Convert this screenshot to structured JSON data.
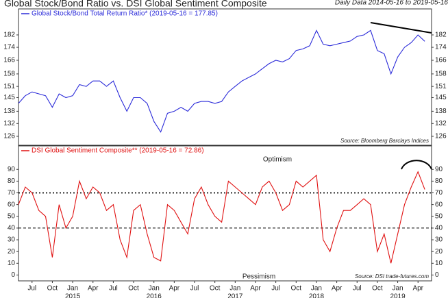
{
  "chart_data": [
    {
      "type": "line",
      "title": "Global Stock/Bond Ratio vs. DSI Global Sentiment Composite",
      "subtitle": "Daily Data 2014-05-16 to 2019-05-16",
      "source": "Source:  Bloomberg Barclays Indices",
      "log": true,
      "xlim": [
        "2014-05",
        "2019-06"
      ],
      "x": [
        "2014-05",
        "2014-06",
        "2014-07",
        "2014-08",
        "2014-09",
        "2014-10",
        "2014-11",
        "2014-12",
        "2015-01",
        "2015-02",
        "2015-03",
        "2015-04",
        "2015-05",
        "2015-06",
        "2015-07",
        "2015-08",
        "2015-09",
        "2015-10",
        "2015-11",
        "2015-12",
        "2016-01",
        "2016-02",
        "2016-03",
        "2016-04",
        "2016-05",
        "2016-06",
        "2016-07",
        "2016-08",
        "2016-09",
        "2016-10",
        "2016-11",
        "2016-12",
        "2017-01",
        "2017-02",
        "2017-03",
        "2017-04",
        "2017-05",
        "2017-06",
        "2017-07",
        "2017-08",
        "2017-09",
        "2017-10",
        "2017-11",
        "2017-12",
        "2018-01",
        "2018-02",
        "2018-03",
        "2018-04",
        "2018-05",
        "2018-06",
        "2018-07",
        "2018-08",
        "2018-09",
        "2018-10",
        "2018-11",
        "2018-12",
        "2019-01",
        "2019-02",
        "2019-03",
        "2019-04",
        "2019-05"
      ],
      "series": [
        {
          "name": "Global Stock/Bond Total Return Ratio* (2019-05-16 = 177.85)",
          "color": "#2b2bd9",
          "values": [
            142,
            146,
            148,
            147,
            146,
            140,
            147,
            145,
            146,
            152,
            151,
            154,
            154,
            151,
            154,
            145,
            138,
            145,
            145,
            142,
            133,
            128,
            137,
            138,
            140,
            138,
            142,
            143,
            143,
            142,
            143,
            148,
            151,
            154,
            156,
            158,
            161,
            164,
            166,
            165,
            167,
            172,
            173,
            175,
            185,
            176,
            175,
            176,
            177,
            178,
            181,
            182,
            185,
            172,
            170,
            158,
            168,
            174,
            177,
            182,
            177.85
          ]
        }
      ],
      "ylim": [
        122,
        200
      ],
      "yticks": [
        126,
        132,
        138,
        145,
        151,
        158,
        166,
        174,
        182
      ]
    },
    {
      "type": "line",
      "source": "Source:  DSI trade-futures.com",
      "top_note": "Optimism",
      "bottom_note": "Pessimism",
      "xlim": [
        "2014-05",
        "2019-06"
      ],
      "x": [
        "2014-05",
        "2014-06",
        "2014-07",
        "2014-08",
        "2014-09",
        "2014-10",
        "2014-11",
        "2014-12",
        "2015-01",
        "2015-02",
        "2015-03",
        "2015-04",
        "2015-05",
        "2015-06",
        "2015-07",
        "2015-08",
        "2015-09",
        "2015-10",
        "2015-11",
        "2015-12",
        "2016-01",
        "2016-02",
        "2016-03",
        "2016-04",
        "2016-05",
        "2016-06",
        "2016-07",
        "2016-08",
        "2016-09",
        "2016-10",
        "2016-11",
        "2016-12",
        "2017-01",
        "2017-02",
        "2017-03",
        "2017-04",
        "2017-05",
        "2017-06",
        "2017-07",
        "2017-08",
        "2017-09",
        "2017-10",
        "2017-11",
        "2017-12",
        "2018-01",
        "2018-02",
        "2018-03",
        "2018-04",
        "2018-05",
        "2018-06",
        "2018-07",
        "2018-08",
        "2018-09",
        "2018-10",
        "2018-11",
        "2018-12",
        "2019-01",
        "2019-02",
        "2019-03",
        "2019-04",
        "2019-05"
      ],
      "series": [
        {
          "name": "DSI Global Sentiment Composite** (2019-05-16 = 72.86)",
          "color": "#e01010",
          "values": [
            60,
            75,
            70,
            55,
            50,
            15,
            60,
            40,
            50,
            80,
            65,
            75,
            70,
            55,
            60,
            30,
            15,
            55,
            60,
            35,
            15,
            12,
            60,
            55,
            45,
            35,
            65,
            75,
            60,
            50,
            45,
            80,
            75,
            70,
            65,
            60,
            75,
            80,
            70,
            55,
            60,
            80,
            75,
            80,
            85,
            30,
            20,
            40,
            55,
            55,
            60,
            65,
            60,
            20,
            35,
            10,
            35,
            60,
            75,
            88,
            72.86
          ]
        }
      ],
      "hlines": [
        {
          "value": 70,
          "dash": "2,3"
        },
        {
          "value": 40,
          "dash": "4,3"
        }
      ],
      "ylim": [
        -5,
        110
      ],
      "yticks": [
        0,
        10,
        20,
        30,
        40,
        50,
        60,
        70,
        80,
        90
      ],
      "xticks": [
        {
          "value": "2014-07",
          "label": "Jul"
        },
        {
          "value": "2014-10",
          "label": "Oct"
        },
        {
          "value": "2015-01",
          "label": "Jan"
        },
        {
          "value": "2015-04",
          "label": "Apr"
        },
        {
          "value": "2015-07",
          "label": "Jul"
        },
        {
          "value": "2015-10",
          "label": "Oct"
        },
        {
          "value": "2016-01",
          "label": "Jan"
        },
        {
          "value": "2016-04",
          "label": "Apr"
        },
        {
          "value": "2016-07",
          "label": "Jul"
        },
        {
          "value": "2016-10",
          "label": "Oct"
        },
        {
          "value": "2017-01",
          "label": "Jan"
        },
        {
          "value": "2017-04",
          "label": "Apr"
        },
        {
          "value": "2017-07",
          "label": "Jul"
        },
        {
          "value": "2017-10",
          "label": "Oct"
        },
        {
          "value": "2018-01",
          "label": "Jan"
        },
        {
          "value": "2018-04",
          "label": "Apr"
        },
        {
          "value": "2018-07",
          "label": "Jul"
        },
        {
          "value": "2018-10",
          "label": "Oct"
        },
        {
          "value": "2019-01",
          "label": "Jan"
        },
        {
          "value": "2019-04",
          "label": "Apr"
        }
      ],
      "year_ticks": [
        {
          "value": "2015-01",
          "label": "2015"
        },
        {
          "value": "2016-01",
          "label": "2016"
        },
        {
          "value": "2017-01",
          "label": "2017"
        },
        {
          "value": "2018-01",
          "label": "2018"
        },
        {
          "value": "2019-01",
          "label": "2019"
        }
      ]
    }
  ]
}
